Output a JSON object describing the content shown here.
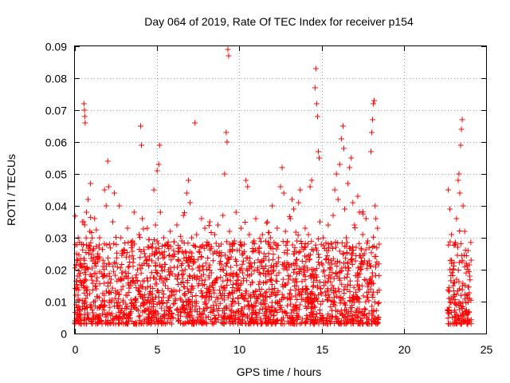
{
  "chart_data": {
    "type": "scatter",
    "title": "Day 064 of 2019, Rate Of TEC Index for receiver p154",
    "xlabel": "GPS time / hours",
    "ylabel": "ROTI / TECUs",
    "xlim": [
      0,
      25
    ],
    "ylim": [
      0,
      0.09
    ],
    "xticks": [
      0,
      5,
      10,
      15,
      20,
      25
    ],
    "xtick_labels": [
      "0",
      "5",
      "10",
      "15",
      "20",
      "25"
    ],
    "yticks": [
      0,
      0.01,
      0.02,
      0.03,
      0.04,
      0.05,
      0.06,
      0.07,
      0.08,
      0.09
    ],
    "ytick_labels": [
      "0",
      "0.01",
      "0.02",
      "0.03",
      "0.04",
      "0.05",
      "0.06",
      "0.07",
      "0.08",
      "0.09"
    ],
    "grid": true,
    "marker": "plus",
    "color": "#ff0000",
    "data_gap_hours": [
      18.5,
      22.6
    ],
    "points": [
      [
        0.05,
        0.012
      ],
      [
        0.1,
        0.025
      ],
      [
        0.15,
        0.008
      ],
      [
        0.2,
        0.03
      ],
      [
        0.25,
        0.018
      ],
      [
        0.3,
        0.022
      ],
      [
        0.35,
        0.006
      ],
      [
        0.4,
        0.028
      ],
      [
        0.45,
        0.035
      ],
      [
        0.5,
        0.015
      ],
      [
        0.55,
        0.072
      ],
      [
        0.58,
        0.07
      ],
      [
        0.6,
        0.068
      ],
      [
        0.62,
        0.066
      ],
      [
        0.65,
        0.02
      ],
      [
        0.7,
        0.038
      ],
      [
        0.75,
        0.012
      ],
      [
        0.8,
        0.042
      ],
      [
        0.85,
        0.025
      ],
      [
        0.9,
        0.032
      ],
      [
        0.95,
        0.047
      ],
      [
        1.0,
        0.018
      ],
      [
        1.1,
        0.026
      ],
      [
        1.2,
        0.036
      ],
      [
        1.3,
        0.014
      ],
      [
        1.4,
        0.024
      ],
      [
        1.5,
        0.03
      ],
      [
        1.6,
        0.009
      ],
      [
        1.7,
        0.021
      ],
      [
        1.8,
        0.045
      ],
      [
        1.9,
        0.04
      ],
      [
        2.0,
        0.054
      ],
      [
        2.05,
        0.046
      ],
      [
        2.1,
        0.028
      ],
      [
        2.2,
        0.017
      ],
      [
        2.3,
        0.035
      ],
      [
        2.4,
        0.044
      ],
      [
        2.5,
        0.022
      ],
      [
        2.6,
        0.013
      ],
      [
        2.7,
        0.04
      ],
      [
        2.8,
        0.03
      ],
      [
        2.9,
        0.019
      ],
      [
        3.0,
        0.026
      ],
      [
        3.1,
        0.012
      ],
      [
        3.2,
        0.033
      ],
      [
        3.3,
        0.024
      ],
      [
        3.4,
        0.016
      ],
      [
        3.5,
        0.029
      ],
      [
        3.6,
        0.038
      ],
      [
        3.7,
        0.011
      ],
      [
        3.8,
        0.02
      ],
      [
        3.9,
        0.031
      ],
      [
        4.0,
        0.065
      ],
      [
        4.05,
        0.059
      ],
      [
        4.1,
        0.036
      ],
      [
        4.2,
        0.022
      ],
      [
        4.3,
        0.014
      ],
      [
        4.4,
        0.033
      ],
      [
        4.5,
        0.027
      ],
      [
        4.6,
        0.01
      ],
      [
        4.7,
        0.025
      ],
      [
        4.8,
        0.045
      ],
      [
        4.9,
        0.034
      ],
      [
        5.0,
        0.051
      ],
      [
        5.1,
        0.053
      ],
      [
        5.15,
        0.059
      ],
      [
        5.2,
        0.038
      ],
      [
        5.3,
        0.021
      ],
      [
        5.4,
        0.03
      ],
      [
        5.5,
        0.015
      ],
      [
        5.6,
        0.028
      ],
      [
        5.7,
        0.02
      ],
      [
        5.8,
        0.032
      ],
      [
        5.9,
        0.012
      ],
      [
        6.0,
        0.026
      ],
      [
        6.1,
        0.018
      ],
      [
        6.2,
        0.034
      ],
      [
        6.3,
        0.023
      ],
      [
        6.4,
        0.011
      ],
      [
        6.5,
        0.029
      ],
      [
        6.6,
        0.037
      ],
      [
        6.7,
        0.02
      ],
      [
        6.8,
        0.044
      ],
      [
        6.9,
        0.048
      ],
      [
        7.0,
        0.041
      ],
      [
        7.1,
        0.03
      ],
      [
        7.2,
        0.022
      ],
      [
        7.3,
        0.066
      ],
      [
        7.4,
        0.031
      ],
      [
        7.5,
        0.015
      ],
      [
        7.6,
        0.027
      ],
      [
        7.7,
        0.036
      ],
      [
        7.8,
        0.02
      ],
      [
        7.9,
        0.033
      ],
      [
        8.0,
        0.012
      ],
      [
        8.1,
        0.028
      ],
      [
        8.2,
        0.035
      ],
      [
        8.3,
        0.019
      ],
      [
        8.4,
        0.025
      ],
      [
        8.5,
        0.031
      ],
      [
        8.6,
        0.017
      ],
      [
        8.7,
        0.034
      ],
      [
        8.8,
        0.022
      ],
      [
        8.9,
        0.028
      ],
      [
        9.0,
        0.037
      ],
      [
        9.1,
        0.05
      ],
      [
        9.2,
        0.063
      ],
      [
        9.25,
        0.06
      ],
      [
        9.3,
        0.089
      ],
      [
        9.35,
        0.087
      ],
      [
        9.4,
        0.032
      ],
      [
        9.5,
        0.024
      ],
      [
        9.6,
        0.018
      ],
      [
        9.7,
        0.029
      ],
      [
        9.8,
        0.038
      ],
      [
        9.9,
        0.014
      ],
      [
        10.0,
        0.026
      ],
      [
        10.1,
        0.033
      ],
      [
        10.2,
        0.019
      ],
      [
        10.3,
        0.028
      ],
      [
        10.4,
        0.048
      ],
      [
        10.5,
        0.046
      ],
      [
        10.6,
        0.031
      ],
      [
        10.7,
        0.022
      ],
      [
        10.8,
        0.016
      ],
      [
        10.9,
        0.029
      ],
      [
        11.0,
        0.036
      ],
      [
        11.1,
        0.02
      ],
      [
        11.2,
        0.027
      ],
      [
        11.3,
        0.012
      ],
      [
        11.4,
        0.031
      ],
      [
        11.5,
        0.025
      ],
      [
        11.6,
        0.018
      ],
      [
        11.7,
        0.035
      ],
      [
        11.8,
        0.023
      ],
      [
        11.9,
        0.03
      ],
      [
        12.0,
        0.04
      ],
      [
        12.1,
        0.021
      ],
      [
        12.2,
        0.028
      ],
      [
        12.3,
        0.033
      ],
      [
        12.4,
        0.019
      ],
      [
        12.5,
        0.046
      ],
      [
        12.6,
        0.052
      ],
      [
        12.7,
        0.044
      ],
      [
        12.8,
        0.032
      ],
      [
        12.9,
        0.025
      ],
      [
        13.0,
        0.017
      ],
      [
        13.1,
        0.036
      ],
      [
        13.2,
        0.042
      ],
      [
        13.3,
        0.039
      ],
      [
        13.4,
        0.022
      ],
      [
        13.5,
        0.029
      ],
      [
        13.6,
        0.041
      ],
      [
        13.7,
        0.045
      ],
      [
        13.8,
        0.027
      ],
      [
        13.9,
        0.02
      ],
      [
        14.0,
        0.033
      ],
      [
        14.1,
        0.024
      ],
      [
        14.2,
        0.031
      ],
      [
        14.3,
        0.046
      ],
      [
        14.4,
        0.048
      ],
      [
        14.5,
        0.026
      ],
      [
        14.6,
        0.077
      ],
      [
        14.65,
        0.083
      ],
      [
        14.7,
        0.072
      ],
      [
        14.75,
        0.068
      ],
      [
        14.8,
        0.057
      ],
      [
        14.85,
        0.055
      ],
      [
        14.9,
        0.035
      ],
      [
        15.0,
        0.022
      ],
      [
        15.1,
        0.03
      ],
      [
        15.2,
        0.018
      ],
      [
        15.3,
        0.026
      ],
      [
        15.4,
        0.034
      ],
      [
        15.5,
        0.02
      ],
      [
        15.6,
        0.028
      ],
      [
        15.7,
        0.037
      ],
      [
        15.8,
        0.045
      ],
      [
        15.9,
        0.05
      ],
      [
        16.0,
        0.042
      ],
      [
        16.1,
        0.053
      ],
      [
        16.2,
        0.061
      ],
      [
        16.3,
        0.065
      ],
      [
        16.35,
        0.058
      ],
      [
        16.4,
        0.039
      ],
      [
        16.5,
        0.03
      ],
      [
        16.6,
        0.047
      ],
      [
        16.7,
        0.052
      ],
      [
        16.8,
        0.055
      ],
      [
        16.9,
        0.041
      ],
      [
        17.0,
        0.034
      ],
      [
        17.1,
        0.027
      ],
      [
        17.2,
        0.043
      ],
      [
        17.3,
        0.038
      ],
      [
        17.4,
        0.02
      ],
      [
        17.5,
        0.031
      ],
      [
        17.6,
        0.025
      ],
      [
        17.7,
        0.036
      ],
      [
        17.8,
        0.029
      ],
      [
        17.9,
        0.022
      ],
      [
        18.0,
        0.057
      ],
      [
        18.05,
        0.063
      ],
      [
        18.1,
        0.067
      ],
      [
        18.15,
        0.072
      ],
      [
        18.2,
        0.073
      ],
      [
        18.25,
        0.04
      ],
      [
        18.3,
        0.036
      ],
      [
        18.4,
        0.033
      ],
      [
        18.5,
        0.028
      ],
      [
        22.7,
        0.045
      ],
      [
        22.8,
        0.039
      ],
      [
        22.9,
        0.031
      ],
      [
        23.0,
        0.02
      ],
      [
        23.1,
        0.028
      ],
      [
        23.2,
        0.036
      ],
      [
        23.3,
        0.048
      ],
      [
        23.35,
        0.05
      ],
      [
        23.4,
        0.044
      ],
      [
        23.45,
        0.059
      ],
      [
        23.5,
        0.064
      ],
      [
        23.55,
        0.067
      ],
      [
        23.6,
        0.04
      ],
      [
        23.7,
        0.032
      ],
      [
        23.8,
        0.022
      ],
      [
        23.9,
        0.026
      ],
      [
        24.0,
        0.018
      ]
    ]
  }
}
